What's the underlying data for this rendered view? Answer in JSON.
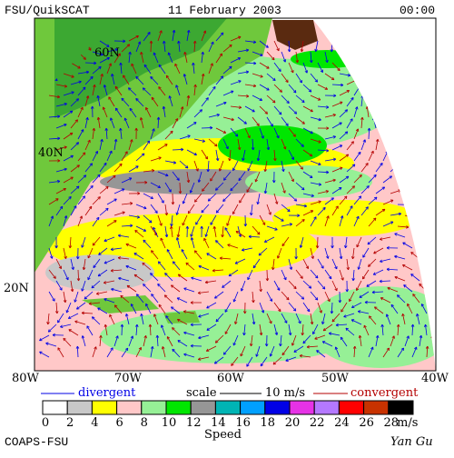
{
  "header": {
    "title": "FSU/QuikSCAT",
    "date": "11 February 2003",
    "time": "00:00"
  },
  "map": {
    "lat_labels": [
      "60N",
      "40N",
      "20N"
    ],
    "lon_labels": [
      "80W",
      "70W",
      "60W",
      "50W",
      "40W"
    ]
  },
  "legend": {
    "divergent": "divergent",
    "scale": "scale",
    "scale_value": "10 m/s",
    "convergent": "convergent"
  },
  "colorbar": {
    "colors": [
      "#ffffff",
      "#c8c8c8",
      "#ffff00",
      "#ffc8c8",
      "#96f096",
      "#00e600",
      "#969696",
      "#00b4b4",
      "#00a0ff",
      "#0000e6",
      "#e632e6",
      "#b478ff",
      "#ff0000",
      "#c83200",
      "#000000"
    ],
    "ticks": [
      0,
      2,
      4,
      6,
      8,
      10,
      12,
      14,
      16,
      18,
      20,
      22,
      24,
      26,
      28
    ],
    "unit": "m/s",
    "label": "Speed"
  },
  "footer": {
    "left": "COAPS-FSU",
    "right": "Yan Gu"
  }
}
